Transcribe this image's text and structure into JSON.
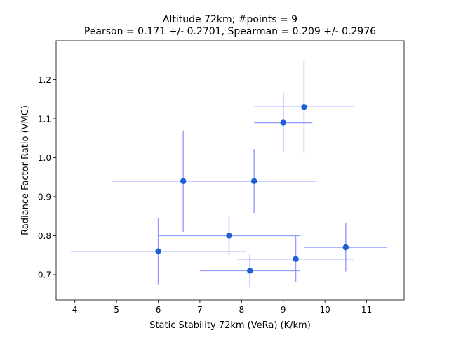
{
  "chart_data": {
    "type": "scatter",
    "title_line1": "Altitude 72km;  #points =  9",
    "title_line2": "Pearson =  0.171 +/-  0.2701, Spearman =  0.209 +/-  0.2976",
    "xlabel": "Static Stability 72km (VeRa) (K/km)",
    "ylabel": "Radiance Factor Ratio (VMC)",
    "xlim": [
      3.55,
      11.9
    ],
    "ylim": [
      0.635,
      1.3
    ],
    "xticks": [
      4,
      5,
      6,
      7,
      8,
      9,
      10,
      11
    ],
    "xtick_labels": [
      "4",
      "5",
      "6",
      "7",
      "8",
      "9",
      "10",
      "11"
    ],
    "yticks": [
      0.7,
      0.8,
      0.9,
      1.0,
      1.1,
      1.2
    ],
    "ytick_labels": [
      "0.7",
      "0.8",
      "0.9",
      "1.0",
      "1.1",
      "1.2"
    ],
    "grid": false,
    "marker_color": "#1f5fd6",
    "errorbar_color": "#7f8cff",
    "points": [
      {
        "x": 6.0,
        "y": 0.76,
        "xerr": 2.1,
        "yerr": 0.085
      },
      {
        "x": 6.6,
        "y": 0.94,
        "xerr": 1.7,
        "yerr": 0.13
      },
      {
        "x": 7.7,
        "y": 0.8,
        "xerr": 1.7,
        "yerr": 0.05
      },
      {
        "x": 8.2,
        "y": 0.71,
        "xerr": 1.2,
        "yerr": 0.043
      },
      {
        "x": 8.3,
        "y": 0.94,
        "xerr": 1.5,
        "yerr": 0.082
      },
      {
        "x": 9.0,
        "y": 1.09,
        "xerr": 0.7,
        "yerr": 0.075
      },
      {
        "x": 9.3,
        "y": 0.74,
        "xerr": 1.4,
        "yerr": 0.06
      },
      {
        "x": 9.5,
        "y": 1.13,
        "xerr": 1.2,
        "yerr": 0.118
      },
      {
        "x": 10.5,
        "y": 0.77,
        "xerr": 1.0,
        "yerr": 0.062
      }
    ]
  }
}
